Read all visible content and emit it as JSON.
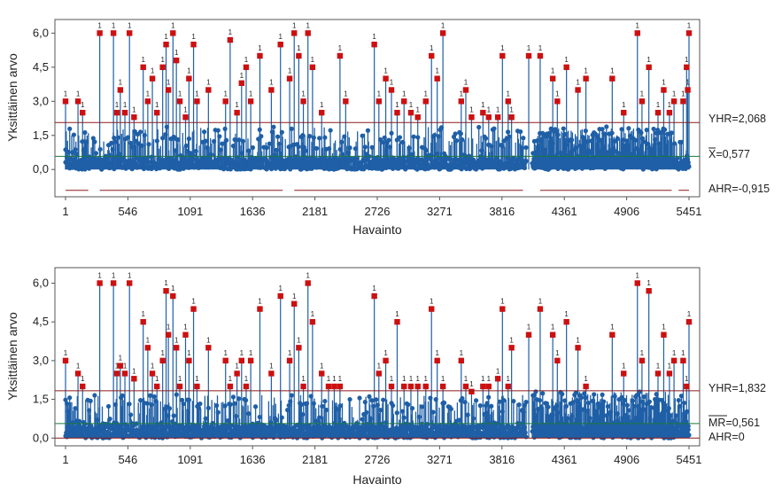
{
  "colors": {
    "series": "#1f5fa6",
    "flagged": "#cc1010",
    "ref_line": "#8b1a1a",
    "frame": "#555555"
  },
  "chart_data": [
    {
      "type": "scatter",
      "title": "",
      "xlabel": "Havainto",
      "ylabel": "Yksittäinen arvo",
      "x_ticks": [
        "1",
        "546",
        "1091",
        "1636",
        "2181",
        "2726",
        "3271",
        "3816",
        "4361",
        "4906",
        "5451"
      ],
      "y_ticks": [
        "0,0",
        "1,5",
        "3,0",
        "4,5",
        "6,0"
      ],
      "xlim": [
        1,
        5451
      ],
      "ylim": [
        -1.2,
        6.6
      ],
      "ref_lines": [
        {
          "label": "YHR=2,068",
          "value": 2.068
        },
        {
          "label": "X=0,577",
          "value": 0.577,
          "overbar": "X"
        },
        {
          "label": "AHR=-0,915",
          "value": -0.915
        }
      ],
      "flag_label": "1",
      "flagged_points": [
        {
          "x": 1,
          "y": 3.0
        },
        {
          "x": 110,
          "y": 3.0
        },
        {
          "x": 150,
          "y": 2.5
        },
        {
          "x": 300,
          "y": 6.0
        },
        {
          "x": 420,
          "y": 6.0
        },
        {
          "x": 450,
          "y": 2.5
        },
        {
          "x": 480,
          "y": 3.5
        },
        {
          "x": 520,
          "y": 2.5
        },
        {
          "x": 560,
          "y": 6.0
        },
        {
          "x": 600,
          "y": 2.3
        },
        {
          "x": 680,
          "y": 4.5
        },
        {
          "x": 720,
          "y": 3.0
        },
        {
          "x": 760,
          "y": 4.0
        },
        {
          "x": 800,
          "y": 2.5
        },
        {
          "x": 850,
          "y": 4.5
        },
        {
          "x": 880,
          "y": 5.5
        },
        {
          "x": 900,
          "y": 3.5
        },
        {
          "x": 940,
          "y": 6.0
        },
        {
          "x": 970,
          "y": 4.8
        },
        {
          "x": 1000,
          "y": 3.0
        },
        {
          "x": 1050,
          "y": 2.3
        },
        {
          "x": 1080,
          "y": 4.0
        },
        {
          "x": 1120,
          "y": 5.5
        },
        {
          "x": 1150,
          "y": 3.0
        },
        {
          "x": 1250,
          "y": 3.5
        },
        {
          "x": 1400,
          "y": 3.0
        },
        {
          "x": 1440,
          "y": 5.7
        },
        {
          "x": 1500,
          "y": 2.5
        },
        {
          "x": 1540,
          "y": 3.8
        },
        {
          "x": 1580,
          "y": 4.5
        },
        {
          "x": 1620,
          "y": 3.0
        },
        {
          "x": 1700,
          "y": 5.0
        },
        {
          "x": 1800,
          "y": 3.5
        },
        {
          "x": 1880,
          "y": 5.5
        },
        {
          "x": 1960,
          "y": 4.0
        },
        {
          "x": 2000,
          "y": 6.0
        },
        {
          "x": 2040,
          "y": 5.0
        },
        {
          "x": 2080,
          "y": 3.0
        },
        {
          "x": 2120,
          "y": 6.0
        },
        {
          "x": 2160,
          "y": 4.5
        },
        {
          "x": 2240,
          "y": 2.5
        },
        {
          "x": 2400,
          "y": 5.0
        },
        {
          "x": 2450,
          "y": 3.0
        },
        {
          "x": 2700,
          "y": 5.5
        },
        {
          "x": 2740,
          "y": 3.0
        },
        {
          "x": 2800,
          "y": 4.0
        },
        {
          "x": 2850,
          "y": 3.5
        },
        {
          "x": 2900,
          "y": 2.5
        },
        {
          "x": 2960,
          "y": 3.0
        },
        {
          "x": 3020,
          "y": 2.5
        },
        {
          "x": 3080,
          "y": 2.3
        },
        {
          "x": 3150,
          "y": 3.0
        },
        {
          "x": 3200,
          "y": 5.0
        },
        {
          "x": 3250,
          "y": 4.0
        },
        {
          "x": 3300,
          "y": 6.0
        },
        {
          "x": 3460,
          "y": 3.0
        },
        {
          "x": 3500,
          "y": 3.5
        },
        {
          "x": 3550,
          "y": 2.3
        },
        {
          "x": 3650,
          "y": 2.5
        },
        {
          "x": 3700,
          "y": 2.3
        },
        {
          "x": 3780,
          "y": 2.3
        },
        {
          "x": 3820,
          "y": 5.0
        },
        {
          "x": 3870,
          "y": 3.0
        },
        {
          "x": 3900,
          "y": 2.3
        },
        {
          "x": 4050,
          "y": 5.0
        },
        {
          "x": 4150,
          "y": 5.0
        },
        {
          "x": 4260,
          "y": 4.0
        },
        {
          "x": 4300,
          "y": 3.0
        },
        {
          "x": 4380,
          "y": 4.5
        },
        {
          "x": 4480,
          "y": 3.5
        },
        {
          "x": 4550,
          "y": 4.0
        },
        {
          "x": 4780,
          "y": 4.0
        },
        {
          "x": 4880,
          "y": 2.5
        },
        {
          "x": 5000,
          "y": 6.0
        },
        {
          "x": 5040,
          "y": 3.0
        },
        {
          "x": 5100,
          "y": 4.5
        },
        {
          "x": 5180,
          "y": 2.5
        },
        {
          "x": 5230,
          "y": 3.5
        },
        {
          "x": 5280,
          "y": 2.5
        },
        {
          "x": 5320,
          "y": 3.0
        },
        {
          "x": 5400,
          "y": 3.0
        },
        {
          "x": 5451,
          "y": 6.0
        },
        {
          "x": 5430,
          "y": 4.5
        },
        {
          "x": 5440,
          "y": 3.5
        }
      ]
    },
    {
      "type": "scatter",
      "title": "",
      "xlabel": "Havainto",
      "ylabel": "Yksittäinen arvo",
      "x_ticks": [
        "1",
        "546",
        "1091",
        "1636",
        "2181",
        "2726",
        "3271",
        "3816",
        "4361",
        "4906",
        "5451"
      ],
      "y_ticks": [
        "0,0",
        "1,5",
        "3,0",
        "4,5",
        "6,0"
      ],
      "xlim": [
        1,
        5451
      ],
      "ylim": [
        -0.3,
        6.6
      ],
      "ref_lines": [
        {
          "label": "YHR=1,832",
          "value": 1.832
        },
        {
          "label": "MR=0,561",
          "value": 0.561,
          "overbar": "MR"
        },
        {
          "label": "AHR=0",
          "value": 0
        }
      ],
      "flag_label": "1",
      "flagged_points": [
        {
          "x": 1,
          "y": 3.0
        },
        {
          "x": 110,
          "y": 2.5
        },
        {
          "x": 150,
          "y": 2.0
        },
        {
          "x": 300,
          "y": 6.0
        },
        {
          "x": 420,
          "y": 6.0
        },
        {
          "x": 450,
          "y": 2.5
        },
        {
          "x": 480,
          "y": 2.8
        },
        {
          "x": 520,
          "y": 2.5
        },
        {
          "x": 560,
          "y": 6.0
        },
        {
          "x": 600,
          "y": 2.3
        },
        {
          "x": 680,
          "y": 4.5
        },
        {
          "x": 720,
          "y": 3.5
        },
        {
          "x": 760,
          "y": 2.5
        },
        {
          "x": 800,
          "y": 2.0
        },
        {
          "x": 850,
          "y": 3.0
        },
        {
          "x": 880,
          "y": 5.7
        },
        {
          "x": 900,
          "y": 4.0
        },
        {
          "x": 940,
          "y": 5.5
        },
        {
          "x": 970,
          "y": 3.5
        },
        {
          "x": 1000,
          "y": 2.0
        },
        {
          "x": 1050,
          "y": 4.0
        },
        {
          "x": 1080,
          "y": 3.0
        },
        {
          "x": 1120,
          "y": 5.0
        },
        {
          "x": 1150,
          "y": 2.0
        },
        {
          "x": 1250,
          "y": 3.5
        },
        {
          "x": 1400,
          "y": 3.0
        },
        {
          "x": 1440,
          "y": 2.0
        },
        {
          "x": 1500,
          "y": 2.5
        },
        {
          "x": 1540,
          "y": 3.0
        },
        {
          "x": 1580,
          "y": 2.0
        },
        {
          "x": 1620,
          "y": 3.0
        },
        {
          "x": 1700,
          "y": 5.0
        },
        {
          "x": 1800,
          "y": 2.5
        },
        {
          "x": 1880,
          "y": 5.5
        },
        {
          "x": 1960,
          "y": 3.0
        },
        {
          "x": 2000,
          "y": 5.2
        },
        {
          "x": 2040,
          "y": 3.5
        },
        {
          "x": 2080,
          "y": 2.0
        },
        {
          "x": 2120,
          "y": 6.0
        },
        {
          "x": 2160,
          "y": 4.5
        },
        {
          "x": 2240,
          "y": 2.5
        },
        {
          "x": 2300,
          "y": 2.0
        },
        {
          "x": 2350,
          "y": 2.0
        },
        {
          "x": 2400,
          "y": 2.0
        },
        {
          "x": 2700,
          "y": 5.5
        },
        {
          "x": 2740,
          "y": 2.5
        },
        {
          "x": 2800,
          "y": 3.0
        },
        {
          "x": 2850,
          "y": 2.0
        },
        {
          "x": 2900,
          "y": 4.5
        },
        {
          "x": 2960,
          "y": 2.0
        },
        {
          "x": 3020,
          "y": 2.0
        },
        {
          "x": 3080,
          "y": 2.0
        },
        {
          "x": 3150,
          "y": 2.0
        },
        {
          "x": 3200,
          "y": 5.0
        },
        {
          "x": 3250,
          "y": 3.0
        },
        {
          "x": 3300,
          "y": 2.0
        },
        {
          "x": 3460,
          "y": 3.0
        },
        {
          "x": 3500,
          "y": 2.0
        },
        {
          "x": 3550,
          "y": 1.8
        },
        {
          "x": 3650,
          "y": 2.0
        },
        {
          "x": 3700,
          "y": 2.0
        },
        {
          "x": 3780,
          "y": 2.3
        },
        {
          "x": 3820,
          "y": 5.0
        },
        {
          "x": 3870,
          "y": 2.0
        },
        {
          "x": 3900,
          "y": 3.5
        },
        {
          "x": 4050,
          "y": 4.0
        },
        {
          "x": 4150,
          "y": 5.0
        },
        {
          "x": 4260,
          "y": 4.0
        },
        {
          "x": 4300,
          "y": 3.0
        },
        {
          "x": 4380,
          "y": 4.5
        },
        {
          "x": 4480,
          "y": 3.5
        },
        {
          "x": 4550,
          "y": 2.0
        },
        {
          "x": 4780,
          "y": 4.0
        },
        {
          "x": 4880,
          "y": 2.5
        },
        {
          "x": 5000,
          "y": 6.0
        },
        {
          "x": 5040,
          "y": 3.0
        },
        {
          "x": 5100,
          "y": 5.7
        },
        {
          "x": 5180,
          "y": 2.5
        },
        {
          "x": 5230,
          "y": 4.0
        },
        {
          "x": 5280,
          "y": 2.5
        },
        {
          "x": 5320,
          "y": 3.0
        },
        {
          "x": 5400,
          "y": 3.0
        },
        {
          "x": 5451,
          "y": 4.5
        },
        {
          "x": 5430,
          "y": 2.0
        }
      ]
    }
  ]
}
